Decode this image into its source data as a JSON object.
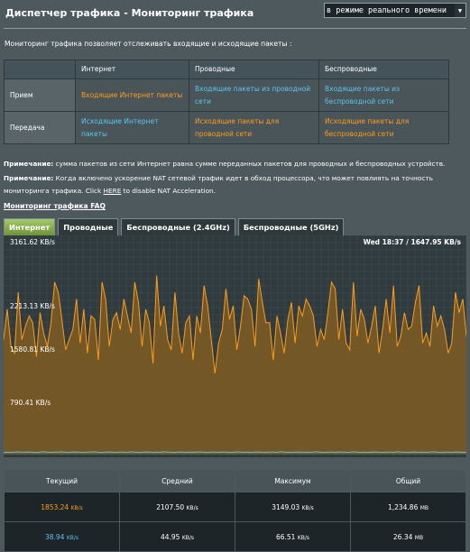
{
  "header": {
    "title": "Диспетчер трафика - Мониторинг трафика",
    "mode": "в режиме реального времени"
  },
  "intro": "Мониторинг трафика позволяет отслеживать входящие и исходящие пакеты :",
  "grid": {
    "columns": [
      "",
      "Интернет",
      "Проводные",
      "Беспроводные"
    ],
    "rows": [
      {
        "label": "Прием",
        "cells": [
          "Входящие Интернет пакеты",
          "Входящие пакеты из проводной сети",
          "Входящие пакеты из беспроводной сети"
        ]
      },
      {
        "label": "Передача",
        "cells": [
          "Исходящие Интернет пакеты",
          "Исходящие пакеты для проводной сети",
          "Исходящие пакеты для беспроводной сети"
        ]
      }
    ]
  },
  "notes": {
    "note1_label": "Примечание:",
    "note1_text": " сумма пакетов из сети Интернет равна сумме переданных пакетов для проводных и беспроводных устройств.",
    "note2_label": "Примечание:",
    "note2_text_a": " Когда включено ускорение NAT сетевой трафик идет в обход процессора, что может повлиять на точность мониторинга трафика. Click ",
    "note2_link": "HERE",
    "note2_text_b": " to disable NAT Acceleration.",
    "faq": "Мониторинг трафика FAQ"
  },
  "tabs": [
    "Интернет",
    "Проводные",
    "Беспроводные (2.4GHz)",
    "Беспроводные (5GHz)"
  ],
  "chart": {
    "stamp": "Wed 18:37 / 1647.95 KB/s",
    "y_labels": [
      "3161.62 KB/s",
      "2213.13 KB/s",
      "1580.81 KB/s",
      "790.41 KB/s"
    ],
    "colors": {
      "rx": "#ff9c1a",
      "tx": "#58c6f2",
      "fill": "#7a5a24"
    }
  },
  "chart_data": {
    "type": "area",
    "ylim": [
      0,
      3161.62
    ],
    "y_ticks": [
      790.41,
      1580.81,
      2213.13,
      3161.62
    ],
    "series": [
      {
        "values": [
          1700,
          2150,
          1600,
          1500,
          2400,
          1700,
          1900,
          2050,
          1950,
          1450,
          2100,
          1800,
          1600,
          1950,
          2550,
          2400,
          2000,
          1550,
          1700,
          1850,
          2300,
          1650,
          2150,
          1500,
          2050,
          2000,
          1400,
          2550,
          2300,
          1600,
          2000,
          2100,
          1850,
          2300,
          2050,
          1800,
          2550,
          2250,
          1600,
          2150,
          1950,
          1350,
          2650,
          1900,
          2200,
          1700,
          1550,
          2400,
          1800,
          1500,
          1950,
          2050,
          1400,
          2050,
          1800,
          2500,
          2200,
          1700,
          1200,
          1650,
          1850,
          2450,
          2000,
          2200,
          1550,
          1900,
          2350,
          2300,
          2150,
          1600,
          2600,
          2250,
          1950,
          1950,
          1400,
          2050,
          1800,
          1500,
          2000,
          2250,
          1650,
          2200,
          2050,
          2300,
          2200,
          2050,
          1600,
          1850,
          1700,
          2100,
          2550,
          2450,
          1700,
          2150,
          1650,
          1550,
          2550,
          1750,
          2150,
          2000,
          1650,
          1900,
          2200,
          1500,
          1850,
          2300,
          1800,
          2500,
          1600,
          1750,
          2100,
          1850,
          1900,
          2250,
          2500,
          1650,
          1800,
          1600,
          2200,
          1900,
          2050,
          1850,
          1500,
          1650,
          2400,
          2100,
          2300,
          1750
        ]
      },
      {
        "values": [
          30,
          35,
          32,
          38,
          40,
          33,
          36,
          39,
          34,
          31,
          37,
          41,
          35,
          33,
          38,
          36,
          40,
          34,
          32,
          39,
          37,
          35,
          33,
          38,
          36,
          42,
          34,
          31,
          37,
          39,
          35,
          33,
          36,
          38,
          34,
          40,
          37,
          32,
          35,
          39,
          36,
          33,
          38,
          34,
          41,
          37,
          35,
          32,
          36,
          39,
          34,
          38,
          33,
          37,
          40,
          35,
          32,
          36,
          38,
          34,
          39,
          37,
          33,
          35,
          40,
          36,
          34,
          38,
          32,
          37,
          39,
          35,
          33,
          36,
          38,
          34,
          41,
          37,
          35,
          32,
          36,
          39,
          34,
          38,
          33,
          37,
          40,
          35,
          32,
          36,
          38,
          34,
          39,
          37,
          33,
          35,
          40,
          36,
          34,
          38,
          32,
          37,
          39,
          35,
          33,
          36,
          38,
          34,
          41,
          37,
          35,
          32,
          36,
          39,
          34,
          38,
          33,
          37,
          40,
          35,
          32,
          36,
          38,
          34,
          39,
          37,
          33,
          35
        ]
      }
    ]
  },
  "stats": {
    "headers": [
      "Текущий",
      "Средний",
      "Максимум",
      "Общий"
    ],
    "rx": [
      {
        "value": "1853.24",
        "unit": "KB/s"
      },
      {
        "value": "2107.50",
        "unit": "KB/s"
      },
      {
        "value": "3149.03",
        "unit": "KB/s"
      },
      {
        "value": "1,234.86",
        "unit": "MB"
      }
    ],
    "tx": [
      {
        "value": "38.94",
        "unit": "KB/s"
      },
      {
        "value": "44.95",
        "unit": "KB/s"
      },
      {
        "value": "66.51",
        "unit": "KB/s"
      },
      {
        "value": "26.34",
        "unit": "MB"
      }
    ]
  }
}
